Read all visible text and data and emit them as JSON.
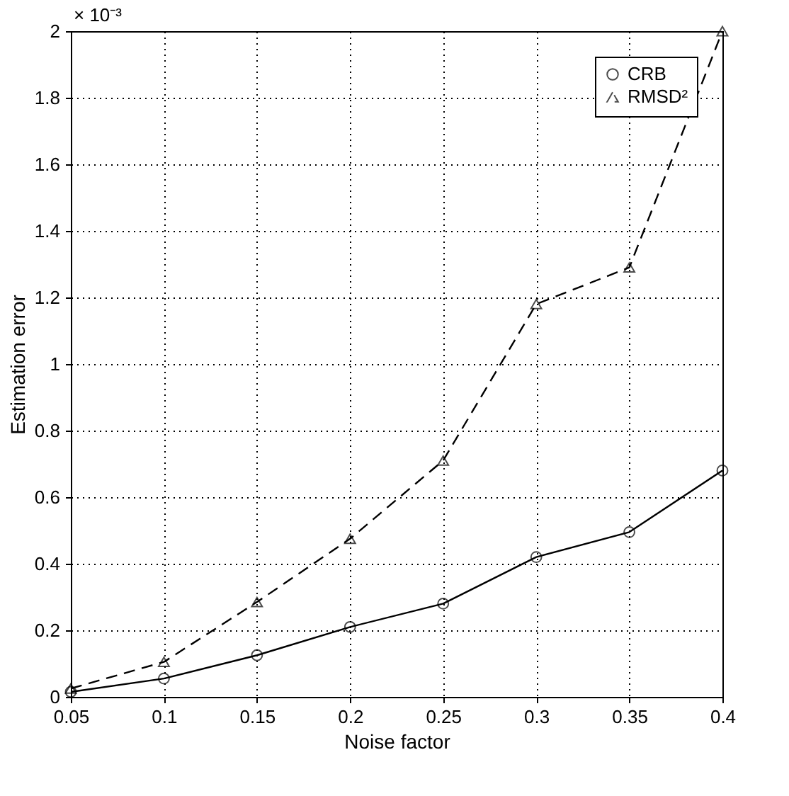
{
  "chart_data": {
    "type": "line",
    "xlabel": "Noise factor",
    "ylabel": "Estimation error",
    "x": [
      0.05,
      0.1,
      0.15,
      0.2,
      0.25,
      0.3,
      0.35,
      0.4
    ],
    "series": [
      {
        "name": "CRB",
        "color": "#000000",
        "marker": "circle",
        "line_style": "solid",
        "values": [
          0.015,
          0.055,
          0.125,
          0.21,
          0.28,
          0.42,
          0.495,
          0.68
        ]
      },
      {
        "name": "RMSD²",
        "color": "#000000",
        "marker": "triangle",
        "line_style": "dashed",
        "values": [
          0.025,
          0.105,
          0.285,
          0.475,
          0.71,
          1.18,
          1.29,
          2.0
        ]
      }
    ],
    "xlim": [
      0.05,
      0.4
    ],
    "xticks": [
      0.05,
      0.1,
      0.15,
      0.2,
      0.25,
      0.3,
      0.35,
      0.4
    ],
    "ylim": [
      0,
      2
    ],
    "yticks": [
      0,
      0.2,
      0.4,
      0.6,
      0.8,
      1,
      1.2,
      1.4,
      1.6,
      1.8,
      2
    ],
    "annotations": [
      "× 10⁻³"
    ],
    "grid": true,
    "legend": "top right"
  }
}
